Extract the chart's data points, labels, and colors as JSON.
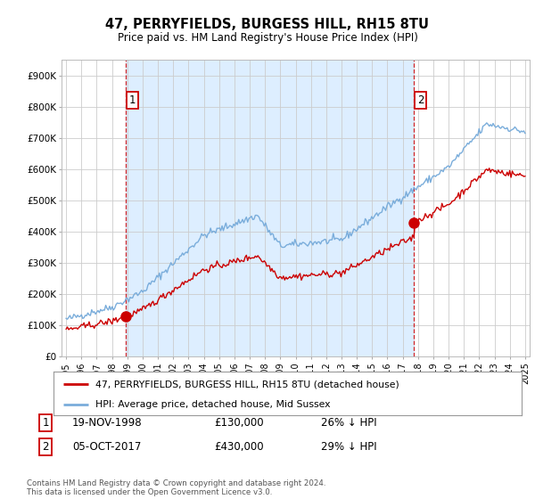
{
  "title": "47, PERRYFIELDS, BURGESS HILL, RH15 8TU",
  "subtitle": "Price paid vs. HM Land Registry's House Price Index (HPI)",
  "legend_line1": "47, PERRYFIELDS, BURGESS HILL, RH15 8TU (detached house)",
  "legend_line2": "HPI: Average price, detached house, Mid Sussex",
  "transaction1_date": "19-NOV-1998",
  "transaction1_price": "£130,000",
  "transaction1_hpi": "26% ↓ HPI",
  "transaction2_date": "05-OCT-2017",
  "transaction2_price": "£430,000",
  "transaction2_hpi": "29% ↓ HPI",
  "footnote": "Contains HM Land Registry data © Crown copyright and database right 2024.\nThis data is licensed under the Open Government Licence v3.0.",
  "price_color": "#cc0000",
  "hpi_color": "#7aaddb",
  "shade_color": "#ddeeff",
  "marker1_x": 1998.9,
  "marker1_y": 130000,
  "marker2_x": 2017.75,
  "marker2_y": 430000,
  "vline1_x": 1998.9,
  "vline2_x": 2017.75,
  "ylim_min": 0,
  "ylim_max": 950000,
  "yticks": [
    0,
    100000,
    200000,
    300000,
    400000,
    500000,
    600000,
    700000,
    800000,
    900000
  ],
  "xlim_min": 1994.7,
  "xlim_max": 2025.3,
  "background_color": "#ffffff",
  "grid_color": "#cccccc"
}
